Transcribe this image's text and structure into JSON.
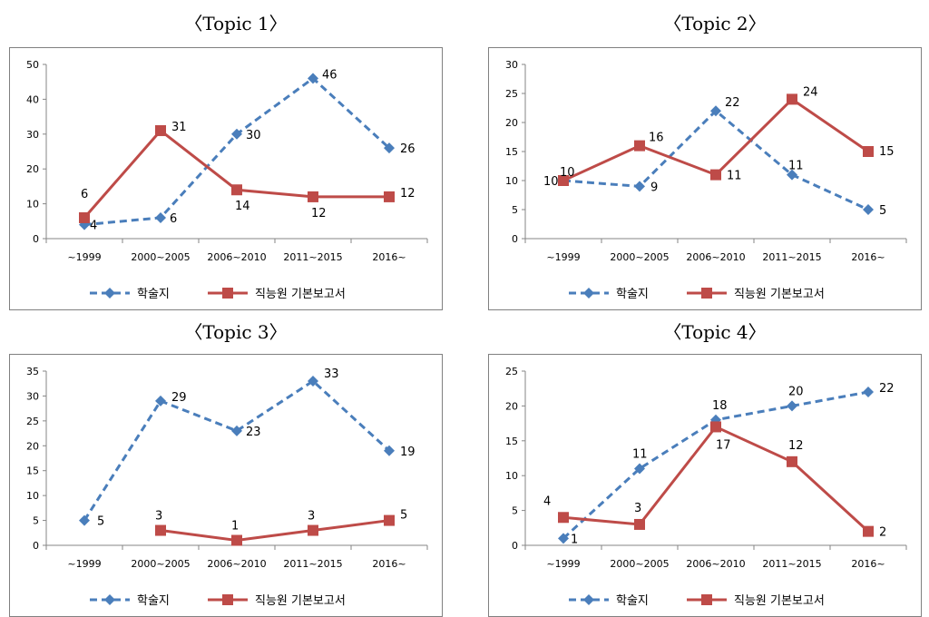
{
  "panels": [
    {
      "heading": "〈Topic 1〉"
    },
    {
      "heading": "〈Topic 2〉"
    },
    {
      "heading": "〈Topic 3〉"
    },
    {
      "heading": "〈Topic 4〉"
    }
  ],
  "colors": {
    "journal": "#4a7ebb",
    "report": "#be4b48"
  },
  "chart_data": [
    {
      "type": "line",
      "categories": [
        "~1999",
        "2000~2005",
        "2006~2010",
        "2011~2015",
        "2016~"
      ],
      "ylim": [
        0,
        50
      ],
      "yticks": [
        0,
        10,
        20,
        30,
        40,
        50
      ],
      "legend_position": "bottom",
      "series": [
        {
          "name": "학술지",
          "style": "dashed",
          "marker": "diamond",
          "values": [
            4,
            6,
            30,
            46,
            26
          ]
        },
        {
          "name": "직능원 기본보고서",
          "style": "solid",
          "marker": "square",
          "values": [
            6,
            31,
            14,
            12,
            12
          ]
        }
      ]
    },
    {
      "type": "line",
      "categories": [
        "~1999",
        "2000~2005",
        "2006~2010",
        "2011~2015",
        "2016~"
      ],
      "ylim": [
        0,
        30
      ],
      "yticks": [
        0,
        5,
        10,
        15,
        20,
        25,
        30
      ],
      "legend_position": "bottom",
      "series": [
        {
          "name": "학술지",
          "style": "dashed",
          "marker": "diamond",
          "values": [
            10,
            9,
            22,
            11,
            5
          ]
        },
        {
          "name": "직능원 기본보고서",
          "style": "solid",
          "marker": "square",
          "values": [
            10,
            16,
            11,
            24,
            15
          ]
        }
      ]
    },
    {
      "type": "line",
      "categories": [
        "~1999",
        "2000~2005",
        "2006~2010",
        "2011~2015",
        "2016~"
      ],
      "ylim": [
        0,
        35
      ],
      "yticks": [
        0,
        5,
        10,
        15,
        20,
        25,
        30,
        35
      ],
      "legend_position": "bottom",
      "series": [
        {
          "name": "학술지",
          "style": "dashed",
          "marker": "diamond",
          "values": [
            5,
            29,
            23,
            33,
            19
          ]
        },
        {
          "name": "직능원 기본보고서",
          "style": "solid",
          "marker": "square",
          "values": [
            null,
            3,
            1,
            3,
            5
          ]
        }
      ]
    },
    {
      "type": "line",
      "categories": [
        "~1999",
        "2000~2005",
        "2006~2010",
        "2011~2015",
        "2016~"
      ],
      "ylim": [
        0,
        25
      ],
      "yticks": [
        0,
        5,
        10,
        15,
        20,
        25
      ],
      "legend_position": "bottom",
      "series": [
        {
          "name": "학술지",
          "style": "dashed",
          "marker": "diamond",
          "values": [
            1,
            11,
            18,
            20,
            22
          ]
        },
        {
          "name": "직능원 기본보고서",
          "style": "solid",
          "marker": "square",
          "values": [
            4,
            3,
            17,
            12,
            2
          ]
        }
      ]
    }
  ]
}
